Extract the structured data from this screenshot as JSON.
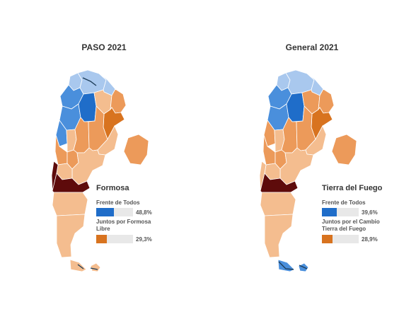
{
  "colors": {
    "frente_dark": "#1f6dc9",
    "frente_mid": "#4a8fdc",
    "frente_light": "#a9c8ee",
    "juntos_dark": "#d8731f",
    "juntos_mid": "#ec9a5a",
    "juntos_light": "#f4bd8f",
    "highlight": "#5e0b0b",
    "coast": "#1e3d59"
  },
  "panels": [
    {
      "title": "PASO 2021",
      "hover_province": "Formosa",
      "tooltip": {
        "title": "Formosa",
        "rows": [
          {
            "label": "Frente de Todos",
            "value": "48,8%",
            "fill": 0.488,
            "color_key": "frente_dark"
          },
          {
            "label": "Juntos por Formosa Libre",
            "value": "29,3%",
            "fill": 0.293,
            "color_key": "juntos_dark"
          }
        ]
      },
      "provinces": {
        "jujuy": "frente_light",
        "salta": "frente_light",
        "formosa": "frente_light",
        "catamarca": "frente_mid",
        "tucuman": "frente_mid",
        "santiago": "frente_dark",
        "chaco": "juntos_light",
        "misiones": "juntos_mid",
        "corrientes": "juntos_dark",
        "la_rioja": "frente_mid",
        "san_juan": "juntos_light",
        "cordoba": "juntos_mid",
        "santa_fe": "juntos_mid",
        "entre_rios": "juntos_light",
        "mendoza": "juntos_mid",
        "san_luis": "juntos_mid",
        "buenos_aires": "juntos_light",
        "caba": "juntos_mid",
        "la_pampa": "juntos_light",
        "neuquen": "highlight",
        "rio_negro": "highlight",
        "chubut": "juntos_light",
        "santa_cruz": "juntos_light",
        "tierra_del_fuego": "juntos_light",
        "malvinas": "juntos_light"
      }
    },
    {
      "title": "General 2021",
      "hover_province": "Tierra del Fuego",
      "tooltip": {
        "title": "Tierra del Fuego",
        "rows": [
          {
            "label": "Frente de Todos",
            "value": "39,6%",
            "fill": 0.396,
            "color_key": "frente_dark"
          },
          {
            "label": "Juntos por el Cambio Tierra del Fuego",
            "value": "28,9%",
            "fill": 0.289,
            "color_key": "juntos_dark"
          }
        ]
      },
      "provinces": {
        "jujuy": "frente_light",
        "salta": "frente_light",
        "formosa": "frente_light",
        "catamarca": "frente_mid",
        "tucuman": "frente_mid",
        "santiago": "frente_dark",
        "chaco": "juntos_mid",
        "misiones": "juntos_mid",
        "corrientes": "juntos_dark",
        "la_rioja": "juntos_mid",
        "san_juan": "juntos_light",
        "cordoba": "juntos_mid",
        "santa_fe": "juntos_mid",
        "entre_rios": "juntos_light",
        "mendoza": "juntos_mid",
        "san_luis": "juntos_mid",
        "buenos_aires": "juntos_light",
        "caba": "juntos_mid",
        "la_pampa": "juntos_light",
        "neuquen": "juntos_light",
        "rio_negro": "highlight",
        "chubut": "juntos_light",
        "santa_cruz": "juntos_light",
        "tierra_del_fuego": "frente_mid",
        "malvinas": "frente_mid"
      }
    }
  ]
}
